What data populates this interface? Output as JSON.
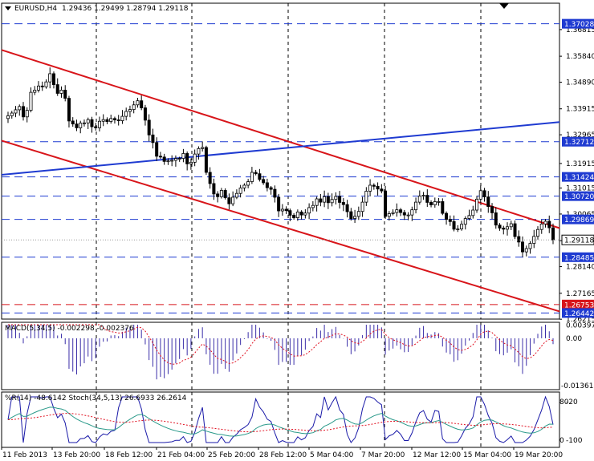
{
  "chart_data": [
    {
      "type": "candlestick",
      "symbol_header": "EURUSD,H4",
      "ohlc_header": "1.29436 1.29499 1.28794 1.29118",
      "ylim": [
        1.2622,
        1.3778
      ],
      "y_ticks": [
        "1.36815",
        "1.35840",
        "1.34890",
        "1.33915",
        "1.32965",
        "1.31915",
        "1.31015",
        "1.30065",
        "1.29090",
        "1.28140",
        "1.27165",
        "1.26215"
      ],
      "x_ticks": [
        "11 Feb 2013",
        "13 Feb 20:00",
        "18 Feb 12:00",
        "21 Feb 04:00",
        "25 Feb 20:00",
        "28 Feb 12:00",
        "5 Mar 04:00",
        "7 Mar 20:00",
        "12 Mar 12:00",
        "15 Mar 04:00",
        "19 Mar 20:00"
      ],
      "current_price": "1.29118",
      "horizontal_levels": [
        {
          "value": 1.37028,
          "label": "1.37028",
          "color": "#1f3bd1"
        },
        {
          "value": 1.32712,
          "label": "1.32712",
          "color": "#1f3bd1"
        },
        {
          "value": 1.31424,
          "label": "1.31424",
          "color": "#1f3bd1"
        },
        {
          "value": 1.3072,
          "label": "1.30720",
          "color": "#1f3bd1"
        },
        {
          "value": 1.29869,
          "label": "1.29869",
          "color": "#1f3bd1"
        },
        {
          "value": 1.28485,
          "label": "1.28485",
          "color": "#1f3bd1"
        },
        {
          "value": 1.26753,
          "label": "1.26753",
          "color": "#d8151a"
        },
        {
          "value": 1.26442,
          "label": "1.26442",
          "color": "#1f3bd1"
        }
      ],
      "trend_lines": [
        {
          "color": "#d8151a",
          "from": [
            "t0",
            1.3607
          ],
          "to": [
            "t_end",
            1.2955
          ]
        },
        {
          "color": "#d8151a",
          "from": [
            "t0",
            1.3275
          ],
          "to": [
            "t_end",
            1.265
          ]
        },
        {
          "color": "#1f3bd1",
          "from": [
            "t0",
            1.315
          ],
          "to": [
            "t_end",
            1.3343
          ]
        }
      ],
      "close": [
        1.3366,
        1.3376,
        1.3388,
        1.34,
        1.3362,
        1.3386,
        1.3452,
        1.346,
        1.3475,
        1.3472,
        1.349,
        1.352,
        1.348,
        1.3448,
        1.346,
        1.343,
        1.3347,
        1.3336,
        1.3322,
        1.3339,
        1.334,
        1.3352,
        1.3326,
        1.3322,
        1.3346,
        1.3352,
        1.3345,
        1.3356,
        1.3351,
        1.3348,
        1.3364,
        1.3382,
        1.3389,
        1.3406,
        1.3421,
        1.3395,
        1.335,
        1.3296,
        1.3268,
        1.3218,
        1.3215,
        1.3199,
        1.3201,
        1.3203,
        1.321,
        1.321,
        1.3228,
        1.319,
        1.3196,
        1.3226,
        1.3246,
        1.325,
        1.3159,
        1.3118,
        1.308,
        1.307,
        1.3093,
        1.3066,
        1.3044,
        1.3068,
        1.3082,
        1.3102,
        1.3112,
        1.3125,
        1.3159,
        1.3154,
        1.3133,
        1.3121,
        1.3103,
        1.3097,
        1.3068,
        1.3018,
        1.3024,
        1.3019,
        1.3002,
        1.2993,
        1.3014,
        1.3003,
        1.301,
        1.303,
        1.3038,
        1.3062,
        1.305,
        1.307,
        1.3048,
        1.306,
        1.3071,
        1.3049,
        1.3041,
        1.3015,
        1.299,
        1.2998,
        1.3016,
        1.305,
        1.309,
        1.3112,
        1.3108,
        1.3098,
        1.3091,
        1.2998,
        1.3008,
        1.3012,
        1.3022,
        1.3012,
        1.3003,
        1.3003,
        1.3022,
        1.305,
        1.3072,
        1.3075,
        1.3049,
        1.304,
        1.3052,
        1.3052,
        1.3009,
        1.2987,
        1.2979,
        1.2951,
        1.2952,
        1.2969,
        1.299,
        1.3001,
        1.3021,
        1.3061,
        1.3092,
        1.3069,
        1.3034,
        1.3011,
        1.2966,
        1.2955,
        1.2951,
        1.296,
        1.2971,
        1.2924,
        1.2904,
        1.2868,
        1.288,
        1.2899,
        1.2925,
        1.295,
        1.297,
        1.298,
        1.2956,
        1.2912
      ],
      "indicators": [
        {
          "type": "histogram",
          "title": "MACD(5,34,5)",
          "readout": "-0.002298 -0.002376",
          "y_ticks": [
            "0.003977",
            "0.00",
            "-0.013619"
          ],
          "ylim": [
            -0.0148,
            0.0046
          ]
        },
        {
          "type": "line",
          "title": "%R(14)",
          "readout": "-48.6142",
          "title2": "Stoch(34,5,13)",
          "readout2": "26.6933 26.2614",
          "y_ticks": [
            "-20",
            "-100",
            "80",
            "0"
          ]
        }
      ]
    }
  ]
}
